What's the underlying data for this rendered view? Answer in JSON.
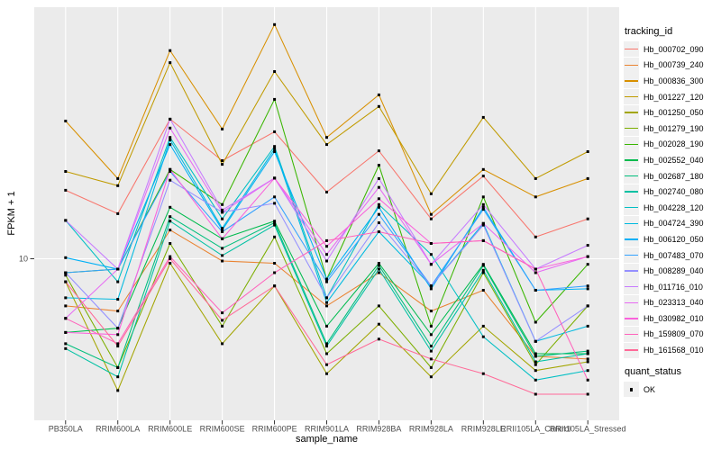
{
  "chart_data": {
    "type": "line",
    "title": "",
    "xlabel": "sample_name",
    "ylabel": "FPKM + 1",
    "y_scale": "log10",
    "y_axis_ticks": [
      {
        "value": 10,
        "label": "10"
      }
    ],
    "y_range_approx": [
      2.3,
      99
    ],
    "grid": "on",
    "legend_position": "right",
    "categories": [
      "PB350LA",
      "RRIM600LA",
      "RRIM600LE",
      "RRIM600SE",
      "RRIM600PE",
      "RRIM901LA",
      "RRIM928BA",
      "RRIM928LA",
      "RRIM928LE",
      "RRII105LA_Control",
      "RRII105LA_Stressed"
    ],
    "series": [
      {
        "name": "Hb_000702_090",
        "color": "#F8766D",
        "values": [
          18.7,
          15.1,
          35.8,
          24.5,
          31.9,
          18.4,
          26.8,
          14.4,
          21.3,
          12.2,
          14.4
        ]
      },
      {
        "name": "Hb_000739_240",
        "color": "#EA8331",
        "values": [
          6.5,
          6.2,
          13.0,
          9.8,
          9.6,
          6.5,
          8.8,
          6.2,
          7.5,
          4.1,
          4.0
        ]
      },
      {
        "name": "Hb_000836_300",
        "color": "#D89000",
        "values": [
          35.2,
          20.8,
          67.0,
          32.7,
          85.0,
          30.3,
          44.7,
          15.0,
          22.6,
          17.6,
          20.8
        ]
      },
      {
        "name": "Hb_001227_120",
        "color": "#C09B00",
        "values": [
          22.2,
          19.5,
          60.0,
          23.7,
          55.3,
          28.4,
          40.2,
          18.1,
          36.4,
          20.8,
          26.6
        ]
      },
      {
        "name": "Hb_001250_050",
        "color": "#A3A500",
        "values": [
          8.1,
          3.0,
          9.6,
          4.6,
          7.8,
          3.5,
          5.5,
          3.4,
          5.4,
          3.6,
          3.9
        ]
      },
      {
        "name": "Hb_001279_190",
        "color": "#7CAE00",
        "values": [
          8.6,
          3.7,
          11.5,
          5.4,
          12.2,
          4.2,
          6.5,
          3.7,
          8.8,
          3.8,
          6.5
        ]
      },
      {
        "name": "Hb_002028_190",
        "color": "#39B600",
        "values": [
          8.8,
          9.1,
          22.6,
          16.4,
          42.9,
          8.3,
          23.5,
          5.4,
          17.6,
          5.6,
          9.5
        ]
      },
      {
        "name": "Hb_002552_040",
        "color": "#00BB4E",
        "values": [
          5.1,
          5.3,
          16.0,
          12.0,
          14.1,
          5.4,
          9.6,
          5.0,
          9.5,
          4.2,
          4.2
        ]
      },
      {
        "name": "Hb_002687_180",
        "color": "#00BF7D",
        "values": [
          4.6,
          3.7,
          14.7,
          11.0,
          13.9,
          4.6,
          9.4,
          4.5,
          9.4,
          4.1,
          4.3
        ]
      },
      {
        "name": "Hb_002740_080",
        "color": "#00C1A3",
        "values": [
          4.4,
          3.4,
          14.1,
          10.3,
          13.6,
          4.5,
          9.1,
          4.3,
          9.0,
          3.9,
          4.2
        ]
      },
      {
        "name": "Hb_004228_120",
        "color": "#00BFC4",
        "values": [
          14.2,
          8.1,
          30.3,
          14.4,
          27.9,
          7.0,
          16.4,
          10.4,
          4.9,
          3.3,
          3.6
        ]
      },
      {
        "name": "Hb_004724_390",
        "color": "#00BAE0",
        "values": [
          7.0,
          6.9,
          29.6,
          13.2,
          27.3,
          6.7,
          12.8,
          7.8,
          13.8,
          4.7,
          5.4
        ]
      },
      {
        "name": "Hb_006120_050",
        "color": "#00B0F6",
        "values": [
          10.1,
          9.1,
          28.4,
          13.0,
          26.6,
          8.3,
          16.0,
          7.6,
          16.0,
          7.5,
          7.6
        ]
      },
      {
        "name": "Hb_007483_070",
        "color": "#35A2FF",
        "values": [
          8.8,
          9.1,
          22.2,
          12.8,
          17.6,
          8.1,
          15.0,
          7.8,
          15.7,
          7.5,
          7.8
        ]
      },
      {
        "name": "Hb_008289_040",
        "color": "#9590FF",
        "values": [
          8.8,
          5.3,
          20.5,
          15.3,
          16.6,
          7.0,
          13.9,
          7.8,
          13.6,
          4.7,
          6.5
        ]
      },
      {
        "name": "Hb_011716_010",
        "color": "#C77CFF",
        "values": [
          14.2,
          9.1,
          35.8,
          15.6,
          20.9,
          9.8,
          20.8,
          9.5,
          16.4,
          9.1,
          11.3
        ]
      },
      {
        "name": "Hb_023313_040",
        "color": "#E76BF3",
        "values": [
          5.8,
          9.1,
          33.0,
          15.3,
          20.9,
          10.4,
          19.2,
          9.5,
          13.8,
          8.8,
          10.2
        ]
      },
      {
        "name": "Hb_030982_010",
        "color": "#FA62DB",
        "values": [
          5.1,
          5.0,
          22.6,
          12.0,
          20.9,
          11.2,
          17.3,
          11.5,
          11.8,
          9.1,
          10.2
        ]
      },
      {
        "name": "Hb_159809_070",
        "color": "#FF62BC",
        "values": [
          5.8,
          4.6,
          10.2,
          6.1,
          8.8,
          11.8,
          12.8,
          11.5,
          11.8,
          9.1,
          3.3
        ]
      },
      {
        "name": "Hb_161568_010",
        "color": "#FF6A98",
        "values": [
          8.1,
          4.5,
          10.0,
          5.7,
          7.8,
          3.8,
          4.8,
          4.0,
          3.5,
          2.9,
          2.9
        ]
      }
    ],
    "points_marker": {
      "shape": "square",
      "color": "#000000"
    },
    "legend": {
      "color_title": "tracking_id",
      "shape_title": "quant_status",
      "shape_items": [
        {
          "label": "OK",
          "marker": "black-square"
        }
      ]
    },
    "colors": {
      "panel_bg": "#EBEBEB",
      "grid": "#FFFFFF",
      "axis_text": "#4D4D4D",
      "tick": "#333333"
    }
  }
}
